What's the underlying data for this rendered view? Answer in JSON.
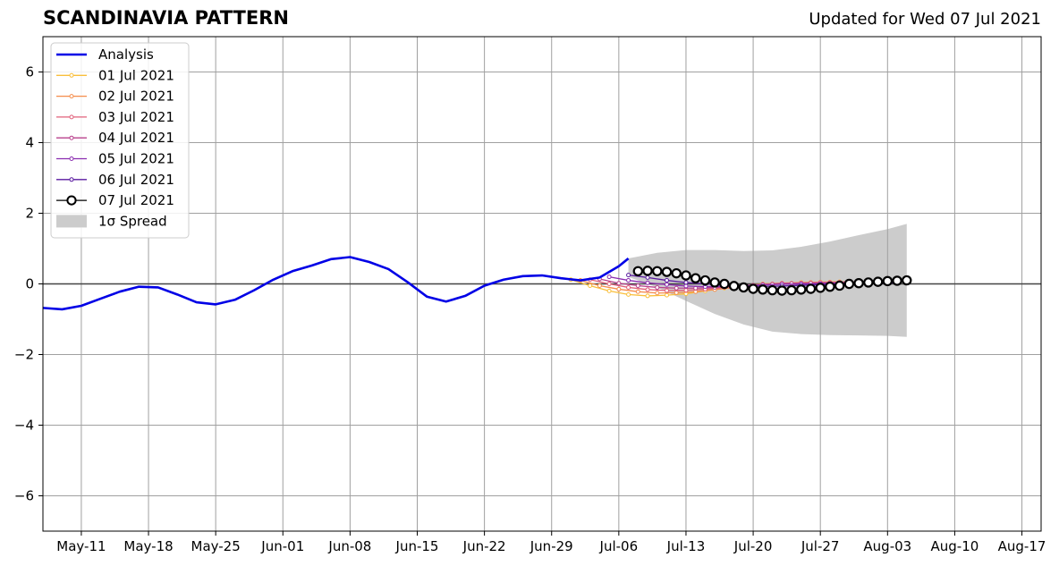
{
  "chart_data": {
    "type": "line",
    "title": "SCANDINAVIA PATTERN",
    "subtitle": "Updated for Wed 07 Jul 2021",
    "xlabel": "",
    "ylabel": "",
    "ylim": [
      -7,
      7
    ],
    "xlim": [
      "2021-05-07",
      "2021-08-19"
    ],
    "yticks": [
      -6,
      -4,
      -2,
      0,
      2,
      4,
      6
    ],
    "ytick_labels": [
      "−6",
      "−4",
      "−2",
      "0",
      "2",
      "4",
      "6"
    ],
    "xticks": [
      "2021-05-11",
      "2021-05-18",
      "2021-05-25",
      "2021-06-01",
      "2021-06-08",
      "2021-06-15",
      "2021-06-22",
      "2021-06-29",
      "2021-07-06",
      "2021-07-13",
      "2021-07-20",
      "2021-07-27",
      "2021-08-03",
      "2021-08-10",
      "2021-08-17"
    ],
    "xtick_labels": [
      "May-11",
      "May-18",
      "May-25",
      "Jun-01",
      "Jun-08",
      "Jun-15",
      "Jun-22",
      "Jun-29",
      "Jul-06",
      "Jul-13",
      "Jul-20",
      "Jul-27",
      "Aug-03",
      "Aug-10",
      "Aug-17"
    ],
    "grid": true,
    "legend_position": "top-left",
    "colors": {
      "analysis": "#0000e6",
      "f0701": "#f9bf3b",
      "f0702": "#f58d4b",
      "f0703": "#e0607a",
      "f0704": "#b8418c",
      "f0705": "#8b2db0",
      "f0706": "#5a1aa0",
      "f0707": "#000000",
      "spread": "#cccccc"
    },
    "analysis": {
      "name": "Analysis",
      "x": [
        "2021-05-07",
        "2021-05-09",
        "2021-05-11",
        "2021-05-13",
        "2021-05-15",
        "2021-05-17",
        "2021-05-19",
        "2021-05-21",
        "2021-05-23",
        "2021-05-25",
        "2021-05-27",
        "2021-05-29",
        "2021-05-31",
        "2021-06-02",
        "2021-06-04",
        "2021-06-06",
        "2021-06-08",
        "2021-06-10",
        "2021-06-12",
        "2021-06-14",
        "2021-06-16",
        "2021-06-18",
        "2021-06-20",
        "2021-06-22",
        "2021-06-24",
        "2021-06-26",
        "2021-06-28",
        "2021-06-30",
        "2021-07-02",
        "2021-07-04",
        "2021-07-06",
        "2021-07-07"
      ],
      "y": [
        -0.68,
        -0.72,
        -0.62,
        -0.42,
        -0.22,
        -0.08,
        -0.1,
        -0.3,
        -0.52,
        -0.58,
        -0.45,
        -0.18,
        0.12,
        0.36,
        0.52,
        0.7,
        0.76,
        0.62,
        0.42,
        0.05,
        -0.36,
        -0.5,
        -0.34,
        -0.05,
        0.12,
        0.22,
        0.24,
        0.16,
        0.1,
        0.18,
        0.5,
        0.72
      ]
    },
    "forecasts": [
      {
        "name": "01 Jul 2021",
        "color_key": "f0701",
        "x": [
          "2021-07-01",
          "2021-07-03",
          "2021-07-05",
          "2021-07-07",
          "2021-07-09",
          "2021-07-11",
          "2021-07-13",
          "2021-07-15",
          "2021-07-17",
          "2021-07-19",
          "2021-07-21",
          "2021-07-23",
          "2021-07-25",
          "2021-07-27",
          "2021-07-29"
        ],
        "y": [
          0.12,
          -0.05,
          -0.2,
          -0.3,
          -0.34,
          -0.32,
          -0.28,
          -0.2,
          -0.12,
          -0.05,
          0.0,
          0.02,
          0.04,
          0.05,
          0.06
        ]
      },
      {
        "name": "02 Jul 2021",
        "color_key": "f0702",
        "x": [
          "2021-07-02",
          "2021-07-04",
          "2021-07-06",
          "2021-07-08",
          "2021-07-10",
          "2021-07-12",
          "2021-07-14",
          "2021-07-16",
          "2021-07-18",
          "2021-07-20",
          "2021-07-22",
          "2021-07-24",
          "2021-07-26",
          "2021-07-28",
          "2021-07-30"
        ],
        "y": [
          0.1,
          -0.05,
          -0.15,
          -0.22,
          -0.26,
          -0.25,
          -0.22,
          -0.16,
          -0.1,
          -0.04,
          0.0,
          0.02,
          0.04,
          0.05,
          0.06
        ]
      },
      {
        "name": "03 Jul 2021",
        "color_key": "f0703",
        "x": [
          "2021-07-03",
          "2021-07-05",
          "2021-07-07",
          "2021-07-09",
          "2021-07-11",
          "2021-07-13",
          "2021-07-15",
          "2021-07-17",
          "2021-07-19",
          "2021-07-21",
          "2021-07-23",
          "2021-07-25",
          "2021-07-27",
          "2021-07-29",
          "2021-07-31"
        ],
        "y": [
          0.12,
          0.0,
          -0.1,
          -0.16,
          -0.19,
          -0.18,
          -0.15,
          -0.1,
          -0.05,
          -0.01,
          0.02,
          0.03,
          0.04,
          0.05,
          0.06
        ]
      },
      {
        "name": "04 Jul 2021",
        "color_key": "f0704",
        "x": [
          "2021-07-04",
          "2021-07-06",
          "2021-07-08",
          "2021-07-10",
          "2021-07-12",
          "2021-07-14",
          "2021-07-16",
          "2021-07-18",
          "2021-07-20",
          "2021-07-22",
          "2021-07-24",
          "2021-07-26",
          "2021-07-28",
          "2021-07-30",
          "2021-08-01"
        ],
        "y": [
          0.14,
          0.02,
          -0.05,
          -0.1,
          -0.12,
          -0.12,
          -0.1,
          -0.07,
          -0.04,
          -0.01,
          0.01,
          0.02,
          0.03,
          0.04,
          0.05
        ]
      },
      {
        "name": "05 Jul 2021",
        "color_key": "f0705",
        "x": [
          "2021-07-05",
          "2021-07-07",
          "2021-07-09",
          "2021-07-11",
          "2021-07-13",
          "2021-07-15",
          "2021-07-17",
          "2021-07-19",
          "2021-07-21",
          "2021-07-23",
          "2021-07-25",
          "2021-07-27",
          "2021-07-29",
          "2021-07-31",
          "2021-08-02"
        ],
        "y": [
          0.2,
          0.1,
          0.03,
          -0.02,
          -0.06,
          -0.08,
          -0.07,
          -0.05,
          -0.03,
          -0.01,
          0.0,
          0.01,
          0.02,
          0.03,
          0.04
        ]
      },
      {
        "name": "06 Jul 2021",
        "color_key": "f0706",
        "x": [
          "2021-07-07",
          "2021-07-09",
          "2021-07-11",
          "2021-07-13",
          "2021-07-15",
          "2021-07-17",
          "2021-07-19",
          "2021-07-21",
          "2021-07-23",
          "2021-07-25",
          "2021-07-27",
          "2021-07-29",
          "2021-07-31",
          "2021-08-02",
          "2021-08-04"
        ],
        "y": [
          0.25,
          0.18,
          0.1,
          0.04,
          0.0,
          -0.04,
          -0.06,
          -0.07,
          -0.06,
          -0.04,
          -0.02,
          0.0,
          0.01,
          0.02,
          0.03
        ]
      },
      {
        "name": "07 Jul 2021",
        "color_key": "f0707",
        "x": [
          "2021-07-08",
          "2021-07-09",
          "2021-07-10",
          "2021-07-11",
          "2021-07-12",
          "2021-07-13",
          "2021-07-14",
          "2021-07-15",
          "2021-07-16",
          "2021-07-17",
          "2021-07-18",
          "2021-07-19",
          "2021-07-20",
          "2021-07-21",
          "2021-07-22",
          "2021-07-23",
          "2021-07-24",
          "2021-07-25",
          "2021-07-26",
          "2021-07-27",
          "2021-07-28",
          "2021-07-29",
          "2021-07-30",
          "2021-07-31",
          "2021-08-01",
          "2021-08-02",
          "2021-08-03",
          "2021-08-04",
          "2021-08-05"
        ],
        "y": [
          0.36,
          0.37,
          0.36,
          0.34,
          0.3,
          0.24,
          0.16,
          0.1,
          0.04,
          0.0,
          -0.06,
          -0.1,
          -0.14,
          -0.16,
          -0.18,
          -0.19,
          -0.18,
          -0.16,
          -0.14,
          -0.11,
          -0.08,
          -0.05,
          0.0,
          0.02,
          0.04,
          0.06,
          0.08,
          0.09,
          0.1
        ]
      }
    ],
    "spread": {
      "name": "1σ Spread",
      "x": [
        "2021-07-07",
        "2021-07-10",
        "2021-07-13",
        "2021-07-16",
        "2021-07-19",
        "2021-07-22",
        "2021-07-25",
        "2021-07-28",
        "2021-07-31",
        "2021-08-03",
        "2021-08-05"
      ],
      "upper": [
        0.72,
        0.88,
        0.96,
        0.96,
        0.93,
        0.95,
        1.05,
        1.2,
        1.38,
        1.55,
        1.7
      ],
      "lower": [
        0.2,
        -0.1,
        -0.48,
        -0.85,
        -1.15,
        -1.35,
        -1.42,
        -1.45,
        -1.46,
        -1.47,
        -1.5
      ]
    }
  }
}
